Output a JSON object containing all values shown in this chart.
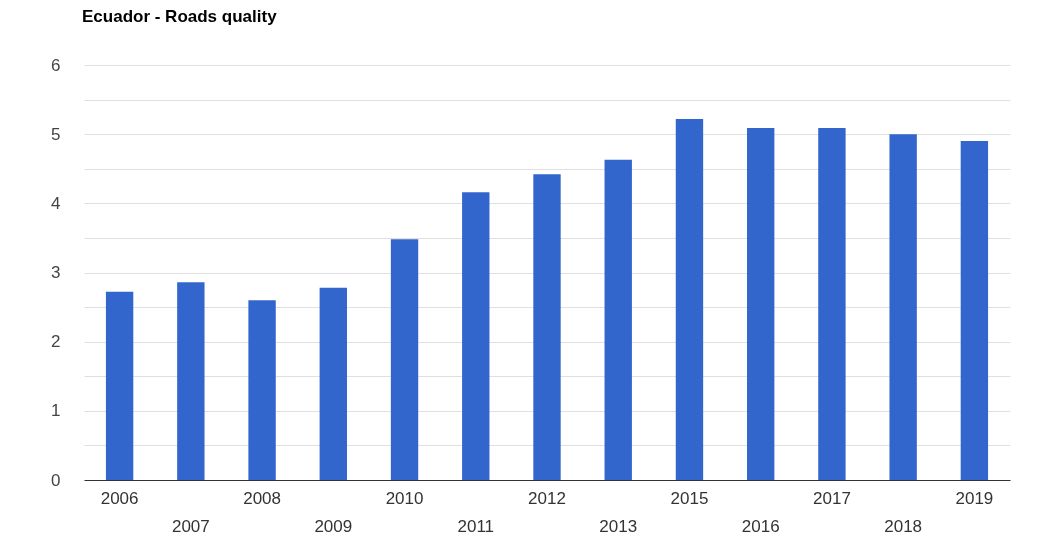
{
  "chart_data": {
    "type": "bar",
    "title": "Ecuador - Roads quality",
    "categories": [
      "2006",
      "2007",
      "2008",
      "2009",
      "2010",
      "2011",
      "2012",
      "2013",
      "2015",
      "2016",
      "2017",
      "2018",
      "2019"
    ],
    "series": [
      {
        "color": "#3366cc",
        "values": [
          2.72,
          2.86,
          2.6,
          2.78,
          3.48,
          4.16,
          4.42,
          4.63,
          5.22,
          5.09,
          5.09,
          5.0,
          4.9
        ]
      }
    ],
    "ylim": [
      0,
      6
    ],
    "yticks": [
      0,
      {
        "value": 0.5,
        "label": null
      },
      1,
      {
        "value": 1.5,
        "label": null
      },
      2,
      {
        "value": 2.5,
        "label": null
      },
      3,
      {
        "value": 3.5,
        "label": null
      },
      4,
      {
        "value": 4.5,
        "label": null
      },
      5,
      {
        "value": 5.5,
        "label": null
      },
      6
    ],
    "grid": "y",
    "legend": false
  }
}
